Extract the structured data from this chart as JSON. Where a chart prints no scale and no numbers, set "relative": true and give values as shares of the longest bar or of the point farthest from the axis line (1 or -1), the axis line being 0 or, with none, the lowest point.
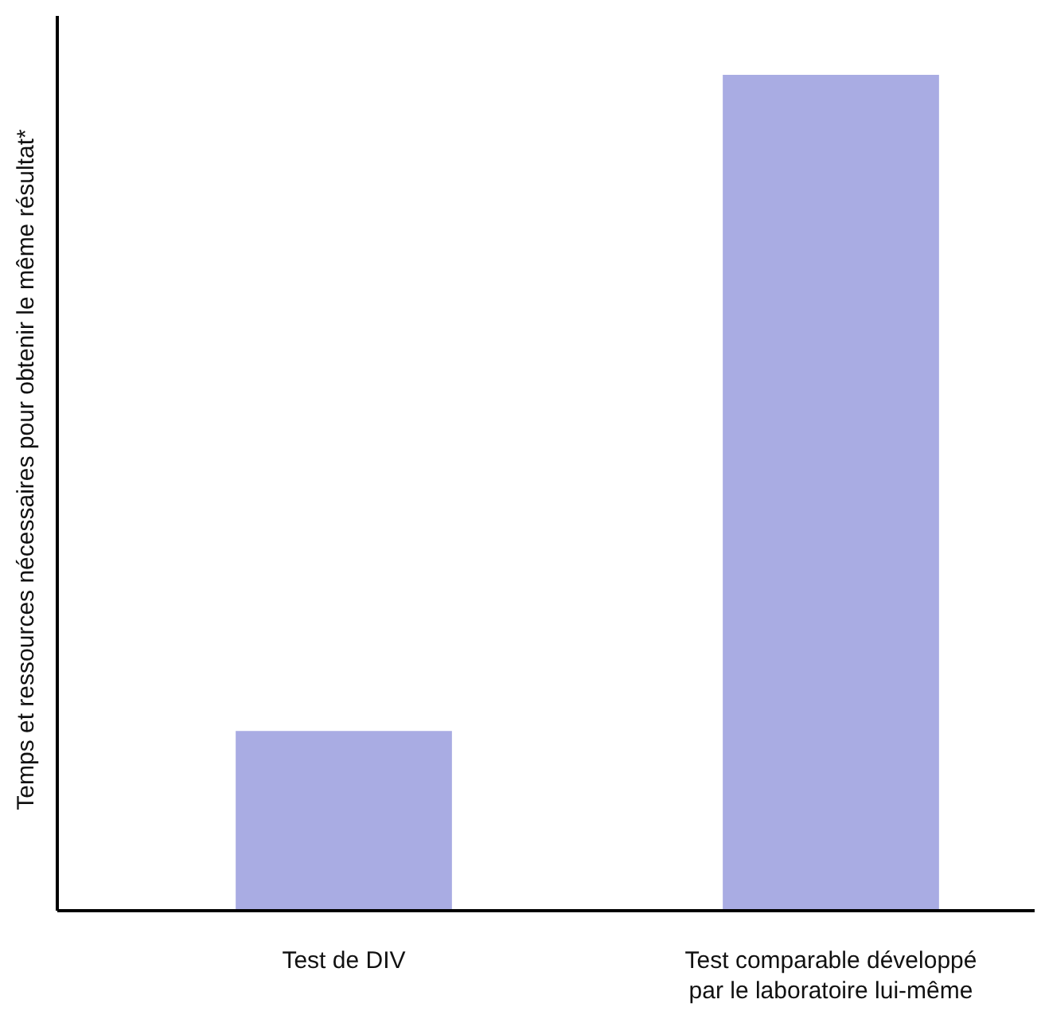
{
  "chart_data": {
    "type": "bar",
    "relative": true,
    "ylabel": "Temps et ressources nécessaires pour obtenir le même résultat*",
    "categories": [
      "Test de DIV",
      "Test comparable développé par le laboratoire lui-même"
    ],
    "values": [
      0.215,
      1
    ],
    "color": "#a9ace3"
  }
}
